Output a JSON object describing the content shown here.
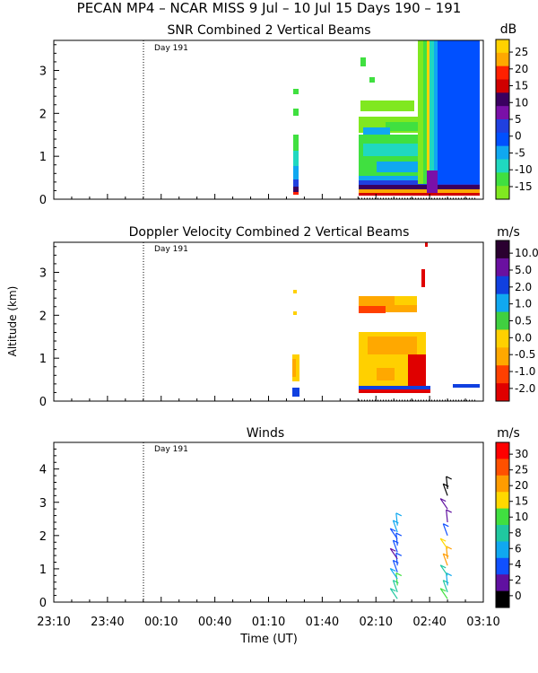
{
  "page": {
    "title": "PECAN MP4 – NCAR MISS    9 Jul – 10 Jul 15 Days 190 – 191"
  },
  "shared_axis": {
    "xlabel": "Time (UT)",
    "x_ticks": [
      "23:10",
      "23:40",
      "00:10",
      "00:40",
      "01:10",
      "01:40",
      "02:10",
      "02:40",
      "03:10"
    ],
    "ylabel": "Altitude (km)",
    "day_label": "Day 191",
    "day_boundary": "00:00"
  },
  "chart_data": [
    {
      "type": "heatmap",
      "title": "SNR Combined 2 Vertical Beams",
      "colorbar_unit": "dB",
      "colorbar_labels": [
        "25",
        "20",
        "15",
        "10",
        "5",
        "0",
        "-5",
        "-10",
        "-15"
      ],
      "colorbar_colors": [
        "#ffd200",
        "#ffa800",
        "#ff2000",
        "#d00000",
        "#3a0060",
        "#7a10a8",
        "#2040e0",
        "#0050ff",
        "#10a8f0",
        "#20d8c0",
        "#40e040",
        "#80e820"
      ],
      "y_ticks": [
        "0",
        "1",
        "2",
        "3"
      ],
      "ylim": [
        0,
        3.7
      ],
      "xlim": [
        "23:10",
        "03:10"
      ]
    },
    {
      "type": "heatmap",
      "title": "Doppler Velocity Combined 2 Vertical Beams",
      "colorbar_unit": "m/s",
      "colorbar_labels": [
        "10.0",
        "5.0",
        "2.0",
        "1.0",
        "0.5",
        "0.0",
        "-0.5",
        "-1.0",
        "-2.0"
      ],
      "colorbar_colors": [
        "#2a0030",
        "#6a10a0",
        "#1040e0",
        "#10a8f0",
        "#40d040",
        "#ffd000",
        "#ffa800",
        "#ff4000",
        "#e00000"
      ],
      "y_ticks": [
        "0",
        "1",
        "2",
        "3"
      ],
      "ylim": [
        0,
        3.7
      ],
      "xlim": [
        "23:10",
        "03:10"
      ]
    },
    {
      "type": "scatter",
      "title": "Winds",
      "colorbar_unit": "m/s",
      "colorbar_labels": [
        "30",
        "25",
        "20",
        "15",
        "10",
        "8",
        "6",
        "4",
        "2",
        "0"
      ],
      "colorbar_colors": [
        "#ff0000",
        "#ff5000",
        "#ff9c00",
        "#ffd800",
        "#40e040",
        "#20c8a0",
        "#10a8f0",
        "#1050ff",
        "#6010a0",
        "#000000"
      ],
      "y_ticks": [
        "0",
        "1",
        "2",
        "3",
        "4"
      ],
      "ylim": [
        0,
        4.8
      ],
      "xlim": [
        "23:10",
        "03:10"
      ],
      "profiles": [
        {
          "time": "02:22",
          "heights": [
            0.1,
            0.3,
            0.5,
            0.7,
            0.9,
            1.1,
            1.3,
            1.5,
            1.7,
            1.9,
            2.1,
            2.3
          ],
          "speeds": [
            8,
            9,
            10,
            6,
            4,
            4,
            3,
            4,
            5,
            5,
            6,
            7
          ]
        },
        {
          "time": "02:50",
          "heights": [
            0.1,
            0.3,
            0.5,
            0.8,
            1.1,
            1.3,
            1.6,
            2.0,
            2.4,
            2.8,
            3.2,
            3.4
          ],
          "speeds": [
            10,
            8,
            6,
            8,
            22,
            20,
            15,
            4,
            2,
            2,
            1,
            1
          ]
        }
      ]
    }
  ]
}
